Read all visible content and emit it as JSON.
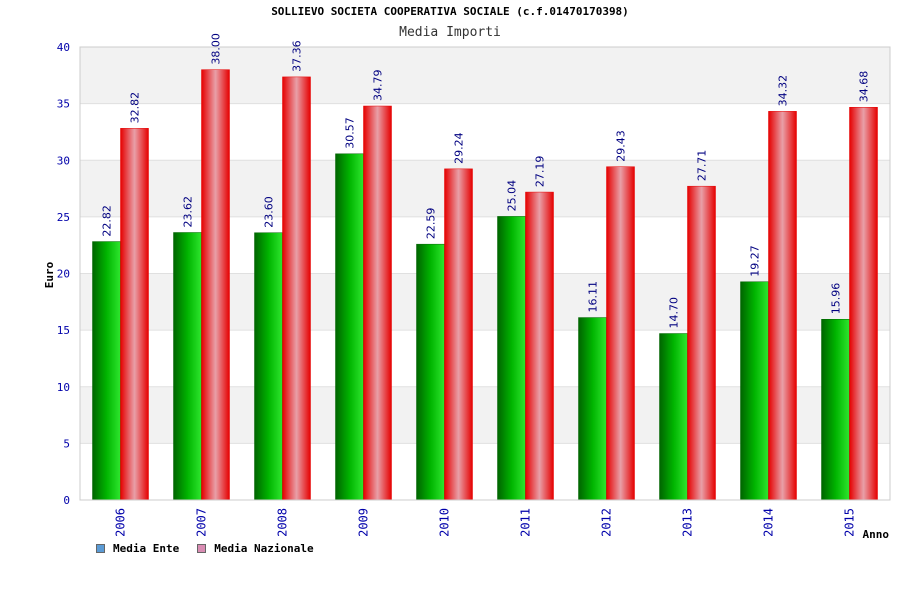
{
  "header": {
    "title": "SOLLIEVO SOCIETA COOPERATIVA SOCIALE (c.f.01470170398)",
    "subtitle": "Media Importi"
  },
  "legend": {
    "items": [
      {
        "label": "Media Ente",
        "color": "#5b9bd5"
      },
      {
        "label": "Media Nazionale",
        "color": "#d98cb3"
      }
    ]
  },
  "colors": {
    "green_dark": "#006400",
    "green_mid": "#00b400",
    "green_light": "#2ee62e",
    "red_dark": "#e60000",
    "red_light": "#e8a0a8",
    "axis_label": "#0000aa",
    "grid_band": "#f2f2f2"
  },
  "chart_data": {
    "type": "bar",
    "title": "SOLLIEVO SOCIETA COOPERATIVA SOCIALE (c.f.01470170398)",
    "subtitle": "Media Importi",
    "xlabel": "Anno",
    "ylabel": "Euro",
    "ylim": [
      0,
      40
    ],
    "yticks": [
      0,
      5,
      10,
      15,
      20,
      25,
      30,
      35,
      40
    ],
    "categories": [
      "2006",
      "2007",
      "2008",
      "2009",
      "2010",
      "2011",
      "2012",
      "2013",
      "2014",
      "2015"
    ],
    "series": [
      {
        "name": "Media Ente",
        "values": [
          22.82,
          23.62,
          23.6,
          30.57,
          22.59,
          25.04,
          16.11,
          14.7,
          19.27,
          15.96
        ],
        "labels": [
          "22.82",
          "23.62",
          "23.60",
          "30.57",
          "22.59",
          "25.04",
          "16.11",
          "14.70",
          "19.27",
          "15.96"
        ]
      },
      {
        "name": "Media Nazionale",
        "values": [
          32.82,
          38.0,
          37.36,
          34.79,
          29.24,
          27.19,
          29.43,
          27.71,
          34.32,
          34.68
        ],
        "labels": [
          "32.82",
          "38.00",
          "37.36",
          "34.79",
          "29.24",
          "27.19",
          "29.43",
          "27.71",
          "34.32",
          "34.68"
        ]
      }
    ],
    "grid": true,
    "legend_position": "bottom-left"
  }
}
